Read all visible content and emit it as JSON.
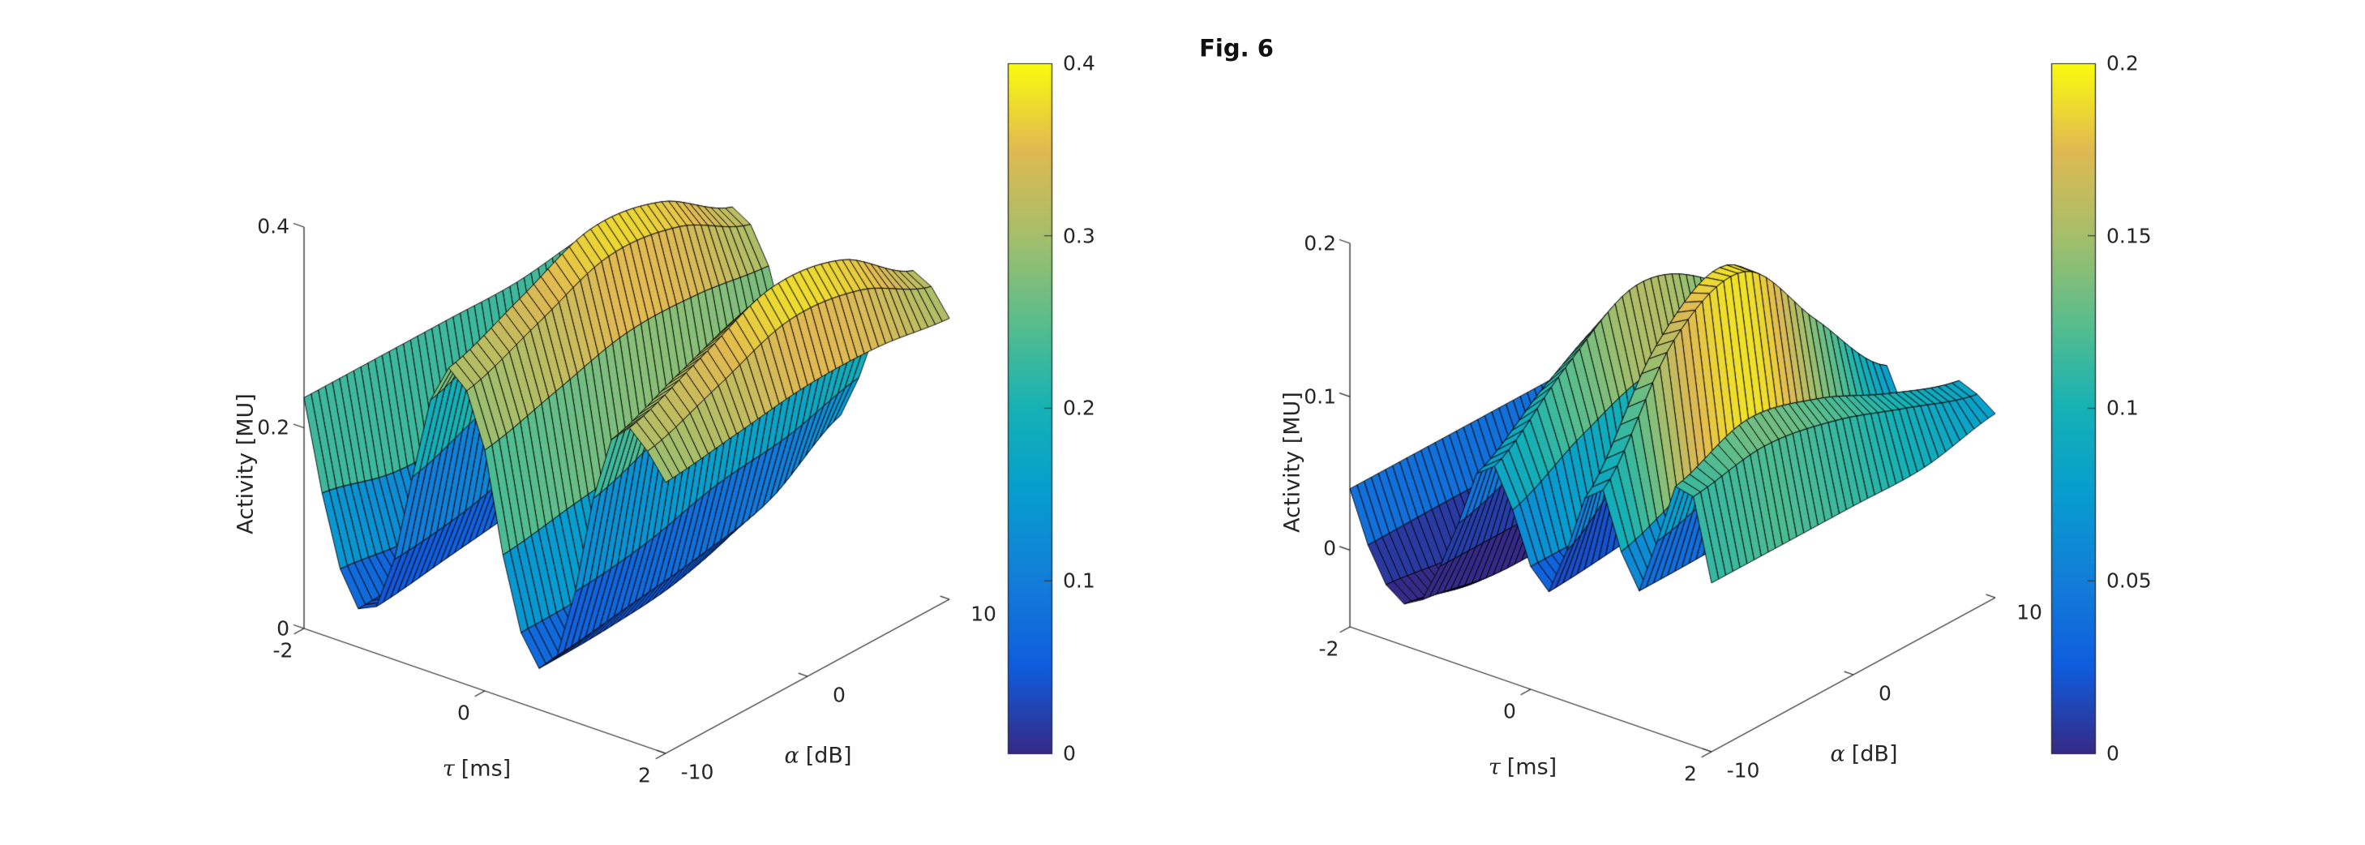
{
  "figure": {
    "title": "Fig. 6",
    "background": "#ffffff"
  },
  "colors": {
    "text": "#262626",
    "axis": "#262626",
    "mesh_edge": "#000000",
    "title": "#111111"
  },
  "colormap": {
    "name": "parula",
    "stops": [
      {
        "t": 0.0,
        "color": "#352a87"
      },
      {
        "t": 0.125,
        "color": "#0f5cdd"
      },
      {
        "t": 0.25,
        "color": "#127dd8"
      },
      {
        "t": 0.375,
        "color": "#079ccf"
      },
      {
        "t": 0.5,
        "color": "#15b1b4"
      },
      {
        "t": 0.625,
        "color": "#59bd8c"
      },
      {
        "t": 0.75,
        "color": "#a5be6b"
      },
      {
        "t": 0.875,
        "color": "#e1b952"
      },
      {
        "t": 1.0,
        "color": "#f9fb0e"
      }
    ]
  },
  "chart_data": [
    {
      "type": "surface",
      "panel": "left",
      "xlabel_symbol": "τ",
      "xlabel_unit": "[ms]",
      "ylabel_symbol": "α",
      "ylabel_unit": "[dB]",
      "zlabel": "Activity [MU]",
      "xlim": [
        -2,
        2
      ],
      "ylim": [
        -10,
        10
      ],
      "zlim": [
        0,
        0.4
      ],
      "clim": [
        0,
        0.4
      ],
      "grid": "off",
      "xticks": [
        "-2",
        "0",
        "2"
      ],
      "yticks": [
        "-10",
        "0",
        "10"
      ],
      "zticks": [
        "0",
        "0.2",
        "0.4"
      ],
      "colorbar_ticks": [
        "0",
        "0.1",
        "0.2",
        "0.3",
        "0.4"
      ],
      "mesh": {
        "tau_lines": 21,
        "alpha_lines": 41
      },
      "x": [
        -2,
        -1.75,
        -1.5,
        -1.25,
        -1,
        -0.75,
        -0.5,
        -0.25,
        0,
        0.25,
        0.5,
        0.75,
        1,
        1.25,
        1.5,
        1.75,
        2
      ],
      "y": [
        -10,
        -5,
        0,
        5,
        10
      ],
      "z": [
        [
          0.23,
          0.12,
          0.05,
          0.04,
          0.1,
          0.21,
          0.3,
          0.3,
          0.24,
          0.12,
          0.05,
          0.05,
          0.13,
          0.25,
          0.31,
          0.3,
          0.27
        ],
        [
          0.23,
          0.1,
          0.05,
          0.05,
          0.11,
          0.24,
          0.33,
          0.33,
          0.26,
          0.13,
          0.05,
          0.06,
          0.14,
          0.28,
          0.34,
          0.33,
          0.28
        ],
        [
          0.23,
          0.1,
          0.06,
          0.06,
          0.13,
          0.26,
          0.36,
          0.36,
          0.28,
          0.14,
          0.06,
          0.07,
          0.16,
          0.3,
          0.37,
          0.36,
          0.29
        ],
        [
          0.23,
          0.11,
          0.08,
          0.08,
          0.14,
          0.26,
          0.35,
          0.35,
          0.28,
          0.16,
          0.09,
          0.09,
          0.17,
          0.29,
          0.36,
          0.35,
          0.29
        ],
        [
          0.24,
          0.15,
          0.12,
          0.12,
          0.17,
          0.25,
          0.31,
          0.31,
          0.27,
          0.19,
          0.14,
          0.14,
          0.19,
          0.26,
          0.31,
          0.31,
          0.28
        ]
      ]
    },
    {
      "type": "surface",
      "panel": "right",
      "xlabel_symbol": "τ",
      "xlabel_unit": "[ms]",
      "ylabel_symbol": "α",
      "ylabel_unit": "[dB]",
      "zlabel": "Activity [MU]",
      "xlim": [
        -2,
        2
      ],
      "ylim": [
        -10,
        10
      ],
      "zlim": [
        -0.05,
        0.2
      ],
      "clim": [
        0,
        0.2
      ],
      "grid": "off",
      "xticks": [
        "-2",
        "0",
        "2"
      ],
      "yticks": [
        "-10",
        "0",
        "10"
      ],
      "zticks": [
        "0",
        "0.1",
        "0.2"
      ],
      "colorbar_ticks": [
        "0",
        "0.05",
        "0.1",
        "0.15",
        "0.2"
      ],
      "mesh": {
        "tau_lines": 21,
        "alpha_lines": 41
      },
      "x": [
        -2,
        -1.75,
        -1.5,
        -1.25,
        -1,
        -0.75,
        -0.5,
        -0.25,
        0,
        0.25,
        0.5,
        0.75,
        1,
        1.25,
        1.5,
        1.75,
        2
      ],
      "y": [
        -10,
        -5,
        0,
        5,
        10
      ],
      "z": [
        [
          0.04,
          0.0,
          -0.02,
          -0.02,
          0.01,
          0.05,
          0.09,
          0.07,
          0.03,
          0.02,
          0.07,
          0.1,
          0.06,
          0.04,
          0.1,
          0.12,
          0.06
        ],
        [
          0.04,
          0.0,
          -0.03,
          -0.03,
          0.01,
          0.07,
          0.13,
          0.1,
          0.03,
          0.03,
          0.13,
          0.18,
          0.08,
          0.04,
          0.12,
          0.13,
          0.06
        ],
        [
          0.04,
          0.0,
          -0.03,
          -0.03,
          0.01,
          0.08,
          0.16,
          0.12,
          0.03,
          0.04,
          0.16,
          0.2,
          0.1,
          0.04,
          0.11,
          0.12,
          0.06
        ],
        [
          0.04,
          0.0,
          -0.03,
          -0.03,
          0.01,
          0.07,
          0.14,
          0.1,
          0.02,
          0.03,
          0.11,
          0.14,
          0.07,
          0.03,
          0.09,
          0.1,
          0.06
        ],
        [
          0.04,
          0.01,
          -0.02,
          -0.02,
          0.01,
          0.05,
          0.08,
          0.06,
          0.02,
          0.02,
          0.06,
          0.08,
          0.05,
          0.04,
          0.08,
          0.08,
          0.07
        ]
      ]
    }
  ]
}
